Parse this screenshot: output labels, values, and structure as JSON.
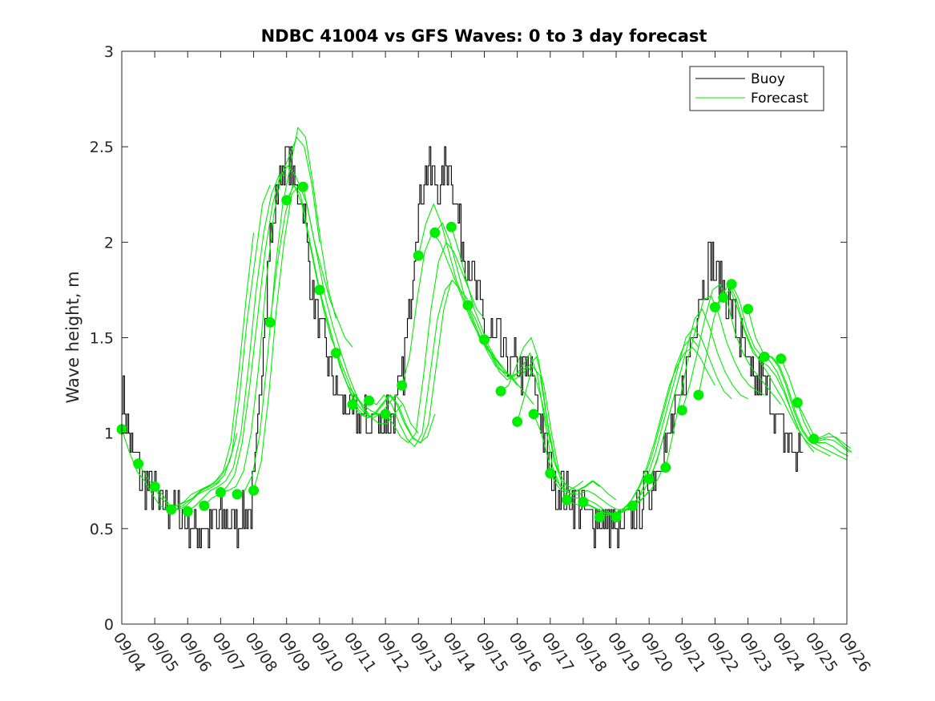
{
  "chart_data": {
    "type": "line",
    "title": "NDBC 41004 vs GFS Waves: 0 to 3 day forecast",
    "xlabel": "",
    "ylabel": "Wave height, m",
    "ylim": [
      0,
      3
    ],
    "xlim": [
      0,
      22
    ],
    "yticks": [
      "0",
      "0.5",
      "1",
      "1.5",
      "2",
      "2.5",
      "3"
    ],
    "xtick_labels": [
      "09/04",
      "09/05",
      "09/06",
      "09/07",
      "09/08",
      "09/09",
      "09/10",
      "09/11",
      "09/12",
      "09/13",
      "09/14",
      "09/15",
      "09/16",
      "09/17",
      "09/18",
      "09/19",
      "09/20",
      "09/21",
      "09/22",
      "09/23",
      "09/24",
      "09/25",
      "09/26"
    ],
    "legend": {
      "position": "top-right",
      "entries": [
        "Buoy",
        "Forecast"
      ]
    },
    "colors": {
      "buoy": "#000000",
      "forecast": "#00ee00",
      "axis": "#262626"
    },
    "buoy_anchors": [
      [
        0.0,
        1.25
      ],
      [
        0.1,
        1.1
      ],
      [
        0.3,
        0.9
      ],
      [
        0.5,
        0.8
      ],
      [
        0.8,
        0.7
      ],
      [
        1.0,
        0.65
      ],
      [
        1.3,
        0.6
      ],
      [
        1.6,
        0.6
      ],
      [
        2.0,
        0.55
      ],
      [
        2.2,
        0.5
      ],
      [
        2.5,
        0.5
      ],
      [
        3.0,
        0.55
      ],
      [
        3.5,
        0.55
      ],
      [
        3.9,
        0.6
      ],
      [
        4.1,
        0.9
      ],
      [
        4.3,
        1.6
      ],
      [
        4.5,
        2.0
      ],
      [
        4.8,
        2.35
      ],
      [
        5.0,
        2.45
      ],
      [
        5.2,
        2.3
      ],
      [
        5.5,
        2.2
      ],
      [
        5.8,
        1.7
      ],
      [
        6.0,
        1.55
      ],
      [
        6.3,
        1.35
      ],
      [
        6.6,
        1.2
      ],
      [
        7.0,
        1.1
      ],
      [
        7.3,
        1.05
      ],
      [
        7.6,
        1.05
      ],
      [
        8.0,
        1.1
      ],
      [
        8.3,
        1.1
      ],
      [
        8.5,
        1.25
      ],
      [
        8.7,
        1.6
      ],
      [
        8.9,
        2.1
      ],
      [
        9.1,
        2.3
      ],
      [
        9.3,
        2.4
      ],
      [
        9.5,
        2.3
      ],
      [
        9.7,
        2.25
      ],
      [
        9.8,
        2.45
      ],
      [
        10.0,
        2.4
      ],
      [
        10.2,
        2.1
      ],
      [
        10.5,
        1.9
      ],
      [
        10.8,
        1.7
      ],
      [
        11.0,
        1.55
      ],
      [
        11.3,
        1.5
      ],
      [
        11.5,
        1.45
      ],
      [
        11.8,
        1.35
      ],
      [
        12.0,
        1.35
      ],
      [
        12.3,
        1.3
      ],
      [
        12.5,
        1.25
      ],
      [
        12.7,
        1.1
      ],
      [
        12.9,
        0.85
      ],
      [
        13.1,
        0.75
      ],
      [
        13.4,
        0.7
      ],
      [
        13.7,
        0.65
      ],
      [
        14.0,
        0.6
      ],
      [
        14.3,
        0.55
      ],
      [
        14.6,
        0.52
      ],
      [
        14.9,
        0.5
      ],
      [
        15.1,
        0.45
      ],
      [
        15.3,
        0.5
      ],
      [
        15.6,
        0.6
      ],
      [
        16.0,
        0.72
      ],
      [
        16.3,
        0.85
      ],
      [
        16.6,
        1.0
      ],
      [
        16.9,
        1.15
      ],
      [
        17.2,
        1.4
      ],
      [
        17.5,
        1.7
      ],
      [
        17.7,
        1.85
      ],
      [
        17.9,
        1.9
      ],
      [
        18.1,
        1.8
      ],
      [
        18.4,
        1.7
      ],
      [
        18.6,
        1.6
      ],
      [
        18.9,
        1.4
      ],
      [
        19.1,
        1.25
      ],
      [
        19.4,
        1.3
      ],
      [
        19.7,
        1.15
      ],
      [
        20.0,
        1.0
      ],
      [
        20.3,
        0.95
      ],
      [
        20.5,
        0.9
      ],
      [
        20.7,
        0.92
      ]
    ],
    "forecast_runs": [
      {
        "start": 0.0,
        "values": [
          1.02,
          0.9,
          0.8,
          0.75,
          0.68,
          0.62,
          0.6,
          0.6,
          0.62,
          0.65,
          0.68,
          0.7,
          0.72,
          0.75
        ]
      },
      {
        "start": 0.5,
        "values": [
          0.84,
          0.78,
          0.72,
          0.66,
          0.62,
          0.62,
          0.64,
          0.68,
          0.7,
          0.72,
          0.74,
          0.78,
          0.85,
          1.0
        ]
      },
      {
        "start": 1.0,
        "values": [
          0.72,
          0.68,
          0.62,
          0.62,
          0.64,
          0.66,
          0.7,
          0.72,
          0.75,
          0.8,
          0.95,
          1.3,
          1.7,
          2.05
        ]
      },
      {
        "start": 1.5,
        "values": [
          0.6,
          0.6,
          0.62,
          0.66,
          0.7,
          0.72,
          0.74,
          0.78,
          0.9,
          1.2,
          1.6,
          1.9,
          2.2,
          2.3
        ]
      },
      {
        "start": 2.0,
        "values": [
          0.59,
          0.62,
          0.66,
          0.7,
          0.72,
          0.75,
          0.82,
          1.0,
          1.35,
          1.75,
          2.05,
          2.25,
          2.35,
          2.35
        ]
      },
      {
        "start": 2.5,
        "values": [
          0.62,
          0.66,
          0.68,
          0.72,
          0.78,
          0.95,
          1.25,
          1.6,
          1.95,
          2.2,
          2.35,
          2.4,
          2.35,
          2.25
        ]
      },
      {
        "start": 3.0,
        "values": [
          0.69,
          0.7,
          0.72,
          0.8,
          1.0,
          1.35,
          1.8,
          2.15,
          2.35,
          2.45,
          2.55,
          2.5,
          2.3,
          2.0
        ]
      },
      {
        "start": 3.5,
        "values": [
          0.68,
          0.7,
          0.78,
          1.0,
          1.4,
          1.85,
          2.2,
          2.4,
          2.6,
          2.55,
          2.3,
          2.0,
          1.75,
          1.6
        ]
      },
      {
        "start": 4.0,
        "values": [
          0.7,
          0.85,
          1.2,
          1.65,
          2.0,
          2.25,
          2.3,
          2.2,
          2.0,
          1.85,
          1.7,
          1.6,
          1.5,
          1.45
        ]
      },
      {
        "start": 4.5,
        "values": [
          1.58,
          1.9,
          2.15,
          2.3,
          2.25,
          2.05,
          1.85,
          1.65,
          1.5,
          1.4,
          1.3,
          1.2,
          1.15,
          1.1
        ]
      },
      {
        "start": 5.0,
        "values": [
          2.22,
          2.3,
          2.2,
          2.0,
          1.8,
          1.65,
          1.5,
          1.35,
          1.25,
          1.2,
          1.15,
          1.12,
          1.1,
          1.1
        ]
      },
      {
        "start": 5.5,
        "values": [
          2.29,
          2.1,
          1.9,
          1.7,
          1.55,
          1.42,
          1.3,
          1.2,
          1.12,
          1.08,
          1.05,
          1.05,
          1.1,
          1.15
        ]
      },
      {
        "start": 6.0,
        "values": [
          1.75,
          1.6,
          1.45,
          1.32,
          1.22,
          1.15,
          1.1,
          1.08,
          1.1,
          1.15,
          1.2,
          1.15,
          1.05,
          1.0
        ]
      },
      {
        "start": 6.5,
        "values": [
          1.42,
          1.3,
          1.2,
          1.12,
          1.08,
          1.1,
          1.15,
          1.2,
          1.15,
          1.05,
          0.98,
          0.95,
          0.98,
          1.1
        ]
      },
      {
        "start": 7.0,
        "values": [
          1.15,
          1.1,
          1.08,
          1.1,
          1.15,
          1.2,
          1.15,
          1.05,
          0.97,
          0.95,
          1.05,
          1.35,
          1.65,
          1.8
        ]
      },
      {
        "start": 7.5,
        "values": [
          1.17,
          1.15,
          1.2,
          1.15,
          1.05,
          0.97,
          0.93,
          1.0,
          1.3,
          1.6,
          1.75,
          1.8,
          1.75,
          1.7
        ]
      },
      {
        "start": 8.0,
        "values": [
          1.1,
          1.05,
          0.98,
          0.95,
          1.0,
          1.3,
          1.65,
          1.9,
          2.0,
          1.95,
          1.85,
          1.75,
          1.65,
          1.6
        ]
      },
      {
        "start": 8.5,
        "values": [
          1.25,
          1.4,
          1.7,
          1.95,
          2.05,
          2.0,
          1.9,
          1.8,
          1.7,
          1.6,
          1.52,
          1.45,
          1.4,
          1.35
        ]
      },
      {
        "start": 9.0,
        "values": [
          1.93,
          2.1,
          2.2,
          2.1,
          1.95,
          1.8,
          1.7,
          1.6,
          1.5,
          1.45,
          1.4,
          1.35,
          1.3,
          1.25
        ]
      },
      {
        "start": 9.5,
        "values": [
          2.05,
          2.1,
          2.0,
          1.85,
          1.7,
          1.6,
          1.5,
          1.42,
          1.35,
          1.32,
          1.3,
          1.25,
          1.2,
          1.15
        ]
      },
      {
        "start": 10.0,
        "values": [
          2.08,
          1.95,
          1.8,
          1.65,
          1.55,
          1.45,
          1.38,
          1.32,
          1.3,
          1.32,
          1.35,
          1.3,
          1.15,
          0.95
        ]
      },
      {
        "start": 10.5,
        "values": [
          1.67,
          1.6,
          1.5,
          1.42,
          1.35,
          1.3,
          1.28,
          1.3,
          1.35,
          1.4,
          1.25,
          1.0,
          0.8,
          0.72
        ]
      },
      {
        "start": 11.0,
        "values": [
          1.49,
          1.4,
          1.32,
          1.28,
          1.3,
          1.35,
          1.42,
          1.3,
          1.05,
          0.82,
          0.72,
          0.7,
          0.72,
          0.75
        ]
      },
      {
        "start": 11.5,
        "values": [
          1.22,
          1.25,
          1.35,
          1.45,
          1.5,
          1.38,
          1.1,
          0.85,
          0.75,
          0.72,
          0.7,
          0.72,
          0.75,
          0.72
        ]
      },
      {
        "start": 12.0,
        "values": [
          1.06,
          1.2,
          1.35,
          1.3,
          1.05,
          0.85,
          0.72,
          0.68,
          0.7,
          0.72,
          0.75,
          0.72,
          0.68,
          0.65
        ]
      },
      {
        "start": 12.5,
        "values": [
          1.1,
          1.0,
          0.85,
          0.75,
          0.7,
          0.68,
          0.68,
          0.7,
          0.68,
          0.65,
          0.62,
          0.6,
          0.6,
          0.62
        ]
      },
      {
        "start": 13.0,
        "values": [
          0.79,
          0.72,
          0.68,
          0.66,
          0.66,
          0.65,
          0.63,
          0.6,
          0.58,
          0.58,
          0.6,
          0.62,
          0.65,
          0.7
        ]
      },
      {
        "start": 13.5,
        "values": [
          0.65,
          0.63,
          0.62,
          0.62,
          0.6,
          0.58,
          0.57,
          0.58,
          0.6,
          0.63,
          0.66,
          0.7,
          0.76,
          0.85
        ]
      },
      {
        "start": 14.0,
        "values": [
          0.64,
          0.62,
          0.6,
          0.58,
          0.58,
          0.6,
          0.62,
          0.65,
          0.7,
          0.78,
          0.9,
          1.05,
          1.2,
          1.35
        ]
      },
      {
        "start": 14.5,
        "values": [
          0.56,
          0.57,
          0.58,
          0.6,
          0.64,
          0.7,
          0.78,
          0.9,
          1.05,
          1.2,
          1.35,
          1.45,
          1.5,
          1.45
        ]
      },
      {
        "start": 15.0,
        "values": [
          0.56,
          0.6,
          0.65,
          0.72,
          0.82,
          0.95,
          1.1,
          1.25,
          1.35,
          1.42,
          1.45,
          1.4,
          1.32,
          1.25
        ]
      },
      {
        "start": 15.5,
        "values": [
          0.62,
          0.68,
          0.78,
          0.9,
          1.05,
          1.2,
          1.35,
          1.5,
          1.55,
          1.5,
          1.4,
          1.3,
          1.22,
          1.18
        ]
      },
      {
        "start": 16.0,
        "values": [
          0.76,
          0.85,
          1.0,
          1.15,
          1.3,
          1.45,
          1.6,
          1.65,
          1.55,
          1.42,
          1.32,
          1.25,
          1.2,
          1.18
        ]
      },
      {
        "start": 16.5,
        "values": [
          0.82,
          1.0,
          1.2,
          1.4,
          1.55,
          1.7,
          1.72,
          1.62,
          1.48,
          1.38,
          1.3,
          1.25,
          1.22,
          1.2
        ]
      },
      {
        "start": 17.0,
        "values": [
          1.12,
          1.25,
          1.42,
          1.6,
          1.75,
          1.78,
          1.68,
          1.52,
          1.42,
          1.35,
          1.3,
          1.25,
          1.2,
          1.15
        ]
      },
      {
        "start": 17.5,
        "values": [
          1.2,
          1.4,
          1.6,
          1.72,
          1.78,
          1.7,
          1.55,
          1.45,
          1.38,
          1.32,
          1.25,
          1.18,
          1.1,
          1.02
        ]
      },
      {
        "start": 18.0,
        "values": [
          1.66,
          1.72,
          1.75,
          1.65,
          1.52,
          1.42,
          1.38,
          1.35,
          1.3,
          1.22,
          1.12,
          1.02,
          0.95,
          0.9
        ]
      },
      {
        "start": 18.5,
        "values": [
          1.78,
          1.7,
          1.55,
          1.45,
          1.4,
          1.38,
          1.32,
          1.22,
          1.1,
          1.0,
          0.95,
          0.92,
          0.9,
          0.88
        ]
      },
      {
        "start": 19.0,
        "values": [
          1.65,
          1.5,
          1.42,
          1.4,
          1.35,
          1.25,
          1.12,
          1.02,
          0.96,
          0.94,
          0.92,
          0.9,
          0.88,
          0.86
        ]
      },
      {
        "start": 19.5,
        "values": [
          1.4,
          1.4,
          1.35,
          1.25,
          1.12,
          1.02,
          0.96,
          0.95,
          0.95,
          0.93,
          0.9,
          0.88
        ]
      },
      {
        "start": 20.0,
        "values": [
          1.39,
          1.3,
          1.18,
          1.06,
          0.98,
          0.96,
          0.97,
          0.96,
          0.93,
          0.9
        ]
      },
      {
        "start": 20.5,
        "values": [
          1.16,
          1.08,
          1.0,
          0.97,
          0.98,
          0.98,
          0.95,
          0.92
        ]
      },
      {
        "start": 21.0,
        "values": [
          0.97,
          0.98,
          1.0,
          0.97,
          0.93,
          0.9
        ]
      }
    ],
    "forecast_dots": [
      [
        0.0,
        1.02
      ],
      [
        0.5,
        0.84
      ],
      [
        1.0,
        0.72
      ],
      [
        1.5,
        0.6
      ],
      [
        2.0,
        0.59
      ],
      [
        2.5,
        0.62
      ],
      [
        3.0,
        0.69
      ],
      [
        3.5,
        0.68
      ],
      [
        4.0,
        0.7
      ],
      [
        4.5,
        1.58
      ],
      [
        5.0,
        2.22
      ],
      [
        5.5,
        2.29
      ],
      [
        6.0,
        1.75
      ],
      [
        6.5,
        1.42
      ],
      [
        7.0,
        1.15
      ],
      [
        7.5,
        1.17
      ],
      [
        8.0,
        1.1
      ],
      [
        8.5,
        1.25
      ],
      [
        9.0,
        1.93
      ],
      [
        9.5,
        2.05
      ],
      [
        10.0,
        2.08
      ],
      [
        10.5,
        1.67
      ],
      [
        11.0,
        1.49
      ],
      [
        11.5,
        1.22
      ],
      [
        12.0,
        1.06
      ],
      [
        12.5,
        1.1
      ],
      [
        13.0,
        0.79
      ],
      [
        13.5,
        0.65
      ],
      [
        14.0,
        0.64
      ],
      [
        14.5,
        0.56
      ],
      [
        15.0,
        0.56
      ],
      [
        15.5,
        0.62
      ],
      [
        16.0,
        0.76
      ],
      [
        16.5,
        0.82
      ],
      [
        17.0,
        1.12
      ],
      [
        17.5,
        1.2
      ],
      [
        18.0,
        1.66
      ],
      [
        18.25,
        1.71
      ],
      [
        18.5,
        1.78
      ],
      [
        19.0,
        1.65
      ],
      [
        19.5,
        1.4
      ],
      [
        20.0,
        1.39
      ],
      [
        20.5,
        1.16
      ],
      [
        21.0,
        0.97
      ]
    ]
  }
}
